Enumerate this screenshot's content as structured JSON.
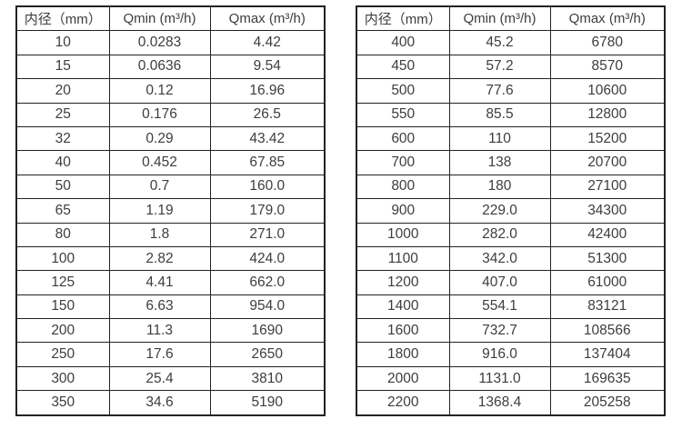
{
  "colors": {
    "table_border": "#222222",
    "text": "#3d3d3d",
    "background": "#ffffff"
  },
  "tables": [
    {
      "name": "flow-table-small-diameters",
      "headers": [
        "内径（mm）",
        "Qmin (m³/h)",
        "Qmax (m³/h)"
      ],
      "rows": [
        [
          "10",
          "0.0283",
          "4.42"
        ],
        [
          "15",
          "0.0636",
          "9.54"
        ],
        [
          "20",
          "0.12",
          "16.96"
        ],
        [
          "25",
          "0.176",
          "26.5"
        ],
        [
          "32",
          "0.29",
          "43.42"
        ],
        [
          "40",
          "0.452",
          "67.85"
        ],
        [
          "50",
          "0.7",
          "160.0"
        ],
        [
          "65",
          "1.19",
          "179.0"
        ],
        [
          "80",
          "1.8",
          "271.0"
        ],
        [
          "100",
          "2.82",
          "424.0"
        ],
        [
          "125",
          "4.41",
          "662.0"
        ],
        [
          "150",
          "6.63",
          "954.0"
        ],
        [
          "200",
          "11.3",
          "1690"
        ],
        [
          "250",
          "17.6",
          "2650"
        ],
        [
          "300",
          "25.4",
          "3810"
        ],
        [
          "350",
          "34.6",
          "5190"
        ]
      ]
    },
    {
      "name": "flow-table-large-diameters",
      "headers": [
        "内径（mm）",
        "Qmin (m³/h)",
        "Qmax (m³/h)"
      ],
      "rows": [
        [
          "400",
          "45.2",
          "6780"
        ],
        [
          "450",
          "57.2",
          "8570"
        ],
        [
          "500",
          "77.6",
          "10600"
        ],
        [
          "550",
          "85.5",
          "12800"
        ],
        [
          "600",
          "110",
          "15200"
        ],
        [
          "700",
          "138",
          "20700"
        ],
        [
          "800",
          "180",
          "27100"
        ],
        [
          "900",
          "229.0",
          "34300"
        ],
        [
          "1000",
          "282.0",
          "42400"
        ],
        [
          "1100",
          "342.0",
          "51300"
        ],
        [
          "1200",
          "407.0",
          "61000"
        ],
        [
          "1400",
          "554.1",
          "83121"
        ],
        [
          "1600",
          "732.7",
          "108566"
        ],
        [
          "1800",
          "916.0",
          "137404"
        ],
        [
          "2000",
          "1131.0",
          "169635"
        ],
        [
          "2200",
          "1368.4",
          "205258"
        ]
      ]
    }
  ]
}
